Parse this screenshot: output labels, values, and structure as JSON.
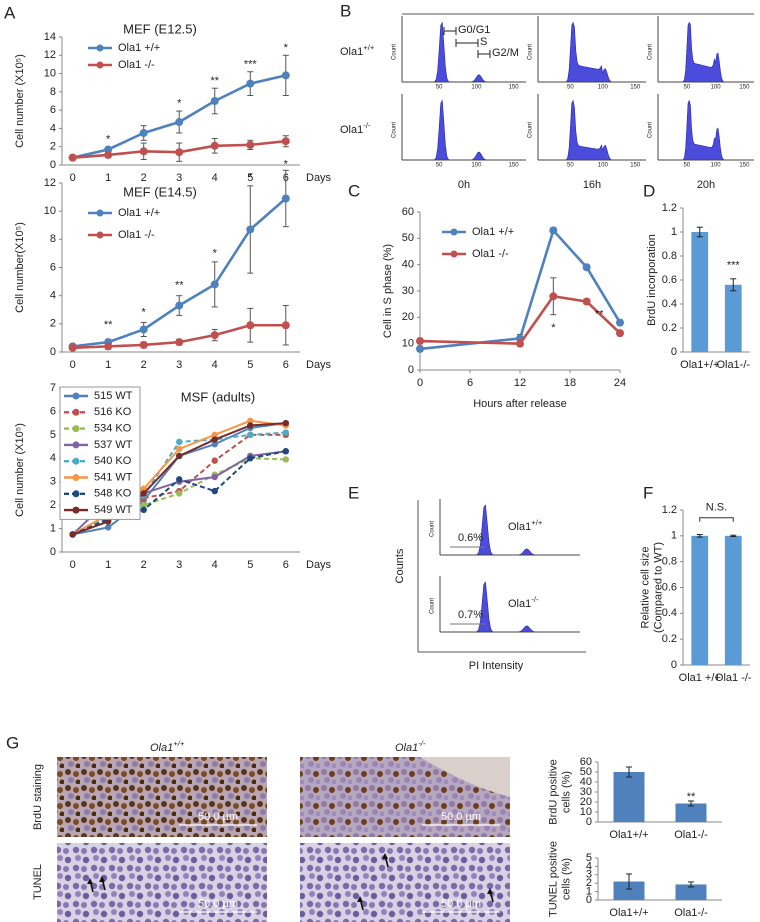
{
  "panel_labels": [
    "A",
    "B",
    "C",
    "D",
    "E",
    "F",
    "G"
  ],
  "chart_data": [
    {
      "type": "line",
      "title": "MEF (E12.5)",
      "y_label": "Cell number (X10⁵)",
      "x_label": "Days",
      "x": [
        0,
        1,
        2,
        3,
        4,
        5,
        6
      ],
      "xlim": [
        -0.3,
        6.4
      ],
      "xticks": [
        0,
        1,
        2,
        3,
        4,
        5,
        6
      ],
      "ylim": [
        0,
        14
      ],
      "yticks": [
        0,
        2,
        4,
        6,
        8,
        10,
        12,
        14
      ],
      "series": [
        {
          "name": "Ola1 +/+",
          "color": "#4f81bd",
          "values": [
            0.8,
            1.7,
            3.5,
            4.7,
            7.0,
            8.9,
            9.8
          ],
          "errors": [
            0.1,
            0.2,
            0.8,
            1.2,
            1.4,
            1.3,
            2.2
          ]
        },
        {
          "name": "Ola1 -/-",
          "color": "#c0504d",
          "values": [
            0.8,
            1.1,
            1.5,
            1.4,
            2.1,
            2.2,
            2.6
          ],
          "errors": [
            0.1,
            0.3,
            0.9,
            1.0,
            0.8,
            0.5,
            0.6
          ]
        }
      ],
      "annotations": [
        {
          "text": "*",
          "x": 1,
          "y": 2.8
        },
        {
          "text": "*",
          "x": 3,
          "y": 6.7
        },
        {
          "text": "**",
          "x": 4,
          "y": 9.2
        },
        {
          "text": "***",
          "x": 5,
          "y": 11.0
        },
        {
          "text": "*",
          "x": 6,
          "y": 12.8
        }
      ]
    },
    {
      "type": "line",
      "title": "MEF (E14.5)",
      "y_label": "Cell number(X10⁵)",
      "x_label": "Days",
      "x": [
        0,
        1,
        2,
        3,
        4,
        5,
        6
      ],
      "xlim": [
        -0.3,
        6.4
      ],
      "xticks": [
        0,
        1,
        2,
        3,
        4,
        5,
        6
      ],
      "ylim": [
        0,
        12
      ],
      "yticks": [
        0,
        2,
        4,
        6,
        8,
        10,
        12
      ],
      "series": [
        {
          "name": "Ola1 +/+",
          "color": "#4f81bd",
          "values": [
            0.4,
            0.7,
            1.6,
            3.3,
            4.8,
            8.7,
            10.9
          ],
          "errors": [
            0.1,
            0.2,
            0.5,
            0.7,
            1.6,
            3.1,
            2.0
          ]
        },
        {
          "name": "Ola1 -/-",
          "color": "#c0504d",
          "values": [
            0.3,
            0.4,
            0.5,
            0.7,
            1.2,
            1.9,
            1.9
          ],
          "errors": [
            0.1,
            0.2,
            0.2,
            0.2,
            0.4,
            1.2,
            1.4
          ]
        }
      ],
      "annotations": [
        {
          "text": "**",
          "x": 1,
          "y": 1.9
        },
        {
          "text": "*",
          "x": 2,
          "y": 2.8
        },
        {
          "text": "**",
          "x": 3,
          "y": 4.7
        },
        {
          "text": "*",
          "x": 4,
          "y": 7.0
        },
        {
          "text": "*",
          "x": 5,
          "y": 12.4
        },
        {
          "text": "*",
          "x": 6,
          "y": 13.3
        }
      ]
    },
    {
      "type": "line",
      "title": "MSF (adults)",
      "y_label": "Cell number (X10⁵)",
      "x_label": "Days",
      "x": [
        0,
        1,
        2,
        3,
        4,
        5,
        6
      ],
      "xlim": [
        -0.3,
        6.4
      ],
      "xticks": [
        0,
        1,
        2,
        3,
        4,
        5,
        6
      ],
      "ylim": [
        0,
        7
      ],
      "yticks": [
        0,
        1,
        2,
        3,
        4,
        5,
        6,
        7
      ],
      "series": [
        {
          "name": "515 WT",
          "color": "#4f81bd",
          "values": [
            0.75,
            1.05,
            2.2,
            4.1,
            4.6,
            5.3,
            5.5
          ]
        },
        {
          "name": "516 KO",
          "color": "#c0504d",
          "dashed": true,
          "values": [
            0.75,
            1.4,
            2.3,
            2.6,
            3.9,
            5.0,
            5.0
          ]
        },
        {
          "name": "534 KO",
          "color": "#9bbb59",
          "dashed": true,
          "values": [
            0.75,
            1.6,
            2.0,
            2.5,
            3.3,
            4.0,
            3.95
          ]
        },
        {
          "name": "537 WT",
          "color": "#8064a2",
          "values": [
            0.75,
            2.2,
            2.5,
            3.0,
            3.2,
            4.1,
            4.3
          ]
        },
        {
          "name": "540 KO",
          "color": "#4bacc6",
          "dashed": true,
          "values": [
            0.75,
            1.5,
            2.4,
            4.7,
            4.8,
            5.0,
            5.1
          ]
        },
        {
          "name": "541 WT",
          "color": "#f79646",
          "values": [
            0.75,
            1.6,
            2.7,
            4.4,
            5.0,
            5.6,
            5.4
          ]
        },
        {
          "name": "548 KO",
          "color": "#1f497d",
          "dashed": true,
          "values": [
            0.75,
            1.4,
            1.8,
            3.1,
            2.6,
            4.0,
            4.3
          ]
        },
        {
          "name": "549 WT",
          "color": "#772c2a",
          "values": [
            0.75,
            1.3,
            2.5,
            4.1,
            4.8,
            5.4,
            5.5
          ]
        }
      ]
    },
    {
      "type": "line",
      "y_label": "Cell in S phase (%)",
      "x_label": "Hours after release",
      "x": [
        0,
        12,
        16,
        20,
        24
      ],
      "xlim": [
        0,
        24
      ],
      "xticks": [
        0,
        6,
        12,
        18,
        24
      ],
      "ylim": [
        0,
        60
      ],
      "yticks": [
        0,
        10,
        20,
        30,
        40,
        50,
        60
      ],
      "series": [
        {
          "name": "Ola1 +/+",
          "color": "#4f81bd",
          "values": [
            8,
            12,
            53,
            39,
            18
          ],
          "errors": [
            1,
            1.5,
            1,
            1,
            1
          ]
        },
        {
          "name": "Ola1 -/-",
          "color": "#c0504d",
          "values": [
            11,
            10,
            28,
            26,
            14
          ],
          "errors": [
            1,
            1,
            7,
            1,
            1
          ]
        }
      ],
      "annotations": [
        {
          "text": "*",
          "x": 16,
          "y": 16
        },
        {
          "text": "**",
          "x": 21.5,
          "y": 21
        }
      ]
    },
    {
      "type": "bar",
      "y_label": "BrdU incorporation",
      "categories": [
        "Ola1+/+",
        "Ola1-/-"
      ],
      "values": [
        1,
        0.56
      ],
      "errors": [
        0.04,
        0.05
      ],
      "color": "#5b9bd5",
      "ylim": [
        0,
        1.2
      ],
      "yticks": [
        0,
        0.2,
        0.4,
        0.6,
        0.8,
        1,
        1.2
      ],
      "annotations": [
        {
          "text": "***",
          "x": 1,
          "y": 0.72
        }
      ]
    },
    {
      "type": "bar",
      "y_label": [
        "Relative cell size",
        "(Compared to WT)"
      ],
      "categories": [
        "Ola1 +/+",
        "Ola1 -/-"
      ],
      "values": [
        1,
        1
      ],
      "errors": [
        0.01,
        0.005
      ],
      "color": "#5b9bd5",
      "ylim": [
        0,
        1.2
      ],
      "yticks": [
        0,
        0.2,
        0.4,
        0.6,
        0.8,
        1,
        1.2
      ],
      "annotations": [
        {
          "text": "N.S.",
          "y": 1.14,
          "bracket": true
        }
      ]
    },
    {
      "type": "bar",
      "y_label": [
        "BrdU positive",
        "cells (%)"
      ],
      "categories": [
        "Ola1+/+",
        "Ola1-/-"
      ],
      "values": [
        50,
        18.5
      ],
      "errors": [
        5,
        2.5
      ],
      "color": "#4f81bd",
      "ylim": [
        0,
        60
      ],
      "yticks": [
        0,
        10,
        20,
        30,
        40,
        50,
        60
      ],
      "annotations": [
        {
          "text": "**",
          "x": 1,
          "y": 25
        }
      ]
    },
    {
      "type": "bar",
      "y_label": [
        "TUNEL positive",
        "cells (%)"
      ],
      "categories": [
        "Ola1+/+",
        "Ola1-/-"
      ],
      "values": [
        2.2,
        1.85
      ],
      "errors": [
        0.9,
        0.3
      ],
      "color": "#4f81bd",
      "ylim": [
        0,
        5
      ],
      "yticks": [
        0,
        1,
        2,
        3,
        4,
        5
      ]
    }
  ],
  "cell_cycle": {
    "row_labels": [
      {
        "base": "Ola1",
        "sup": "+/+"
      },
      {
        "base": "Ola1",
        "sup": "-/-"
      }
    ],
    "column_labels": [
      "0h",
      "16h",
      "20h"
    ],
    "gates": [
      "G0/G1",
      "S",
      "G2/M"
    ],
    "axis_label": "Count",
    "x_ticks": [
      "50",
      "100",
      "150"
    ]
  },
  "pi_profile": {
    "y_label": "Counts",
    "x_label": "PI Intensity",
    "axis_label": "Count",
    "rows": [
      {
        "label": {
          "base": "Ola1",
          "sup": "+/+"
        },
        "percent": "0.6%"
      },
      {
        "label": {
          "base": "Ola1",
          "sup": "-/-"
        },
        "percent": "0.7%"
      }
    ]
  },
  "histology": {
    "columns": [
      {
        "base": "Ola1",
        "sup": "+/+"
      },
      {
        "base": "Ola1",
        "sup": "-/-"
      }
    ],
    "rows": [
      "BrdU staining",
      "TUNEL"
    ],
    "scale_bar": "50.0 µm"
  }
}
